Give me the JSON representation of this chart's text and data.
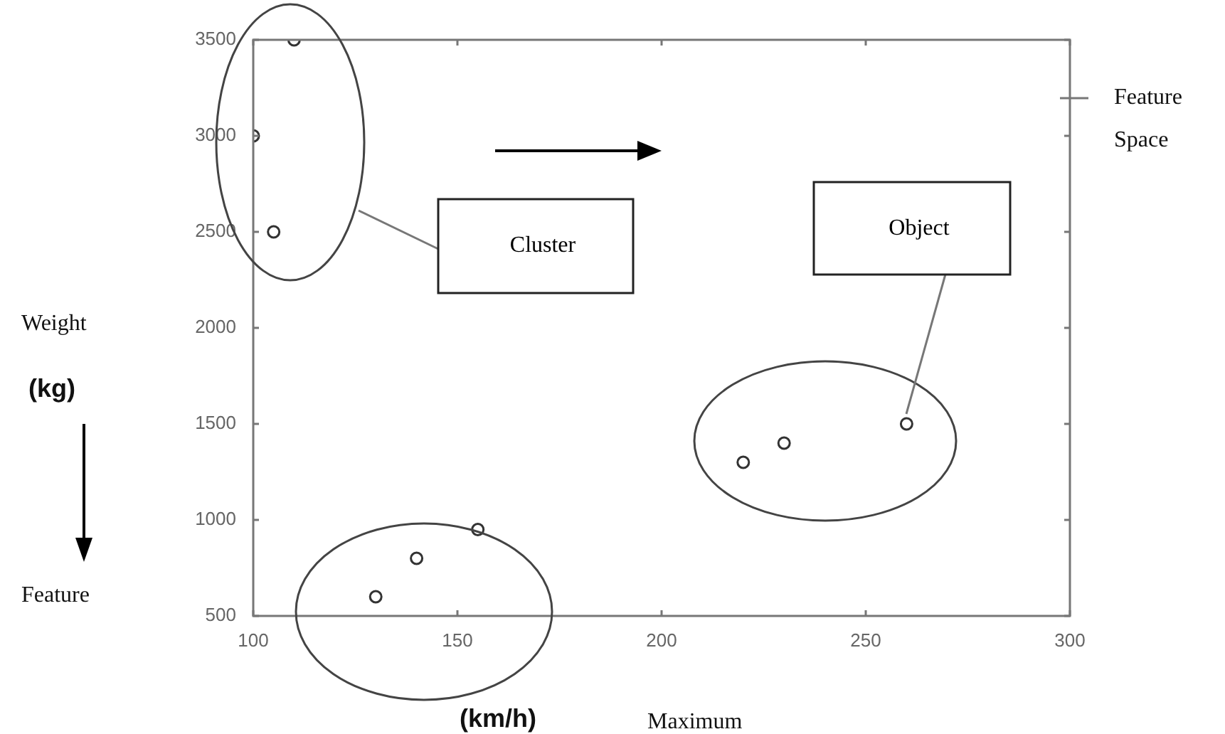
{
  "chart_data": {
    "type": "scatter",
    "x": [
      110,
      100,
      105,
      130,
      140,
      155,
      220,
      230,
      260
    ],
    "values": [
      3500,
      3000,
      2500,
      600,
      800,
      950,
      1300,
      1400,
      1500
    ],
    "color": "#333333",
    "marker": "circle",
    "xlim": [
      100,
      300
    ],
    "xticks": [
      100,
      150,
      200,
      250,
      300
    ],
    "ylim": [
      500,
      3500
    ],
    "yticks": [
      500,
      1000,
      1500,
      2000,
      2500,
      3000,
      3500
    ],
    "annotations": [
      "Weight",
      "(kg)",
      "Feature",
      "(km/h)",
      "Maximum",
      "Feature Space",
      "Cluster",
      "Object"
    ]
  }
}
